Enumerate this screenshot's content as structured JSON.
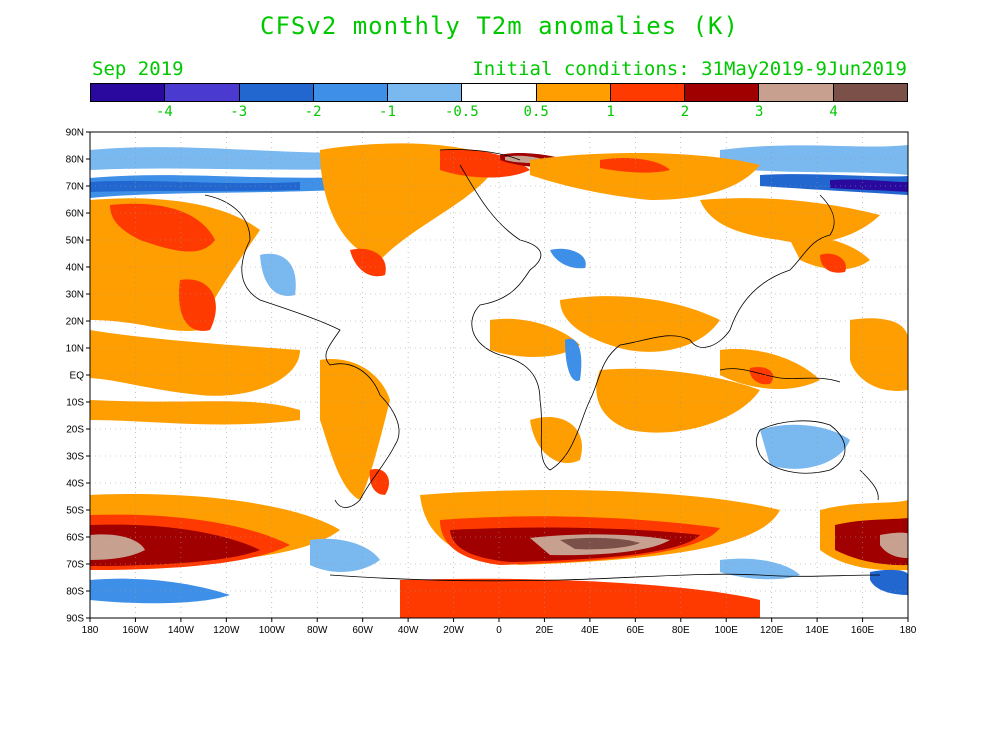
{
  "title": "CFSv2 monthly T2m anomalies (K)",
  "valid_month": "Sep 2019",
  "initial_conditions": "Initial conditions: 31May2019-9Jun2019",
  "colorbar": {
    "colors": [
      "#2a0a9e",
      "#4a3ad0",
      "#2266d0",
      "#3d8fe8",
      "#7ab8f0",
      "#ffffff",
      "#ff9e00",
      "#ff3a00",
      "#a00000",
      "#c8a090",
      "#7a5048"
    ],
    "labels": [
      "-4",
      "-3",
      "-2",
      "-1",
      "-0.5",
      "0.5",
      "1",
      "2",
      "3",
      "4"
    ]
  },
  "axes": {
    "lat_labels": [
      "90N",
      "80N",
      "70N",
      "60N",
      "50N",
      "40N",
      "30N",
      "20N",
      "10N",
      "EQ",
      "10S",
      "20S",
      "30S",
      "40S",
      "50S",
      "60S",
      "70S",
      "80S",
      "90S"
    ],
    "lon_labels": [
      "180",
      "160W",
      "140W",
      "120W",
      "100W",
      "80W",
      "60W",
      "40W",
      "20W",
      "0",
      "20E",
      "40E",
      "60E",
      "80E",
      "100E",
      "120E",
      "140E",
      "160E",
      "180"
    ]
  }
}
